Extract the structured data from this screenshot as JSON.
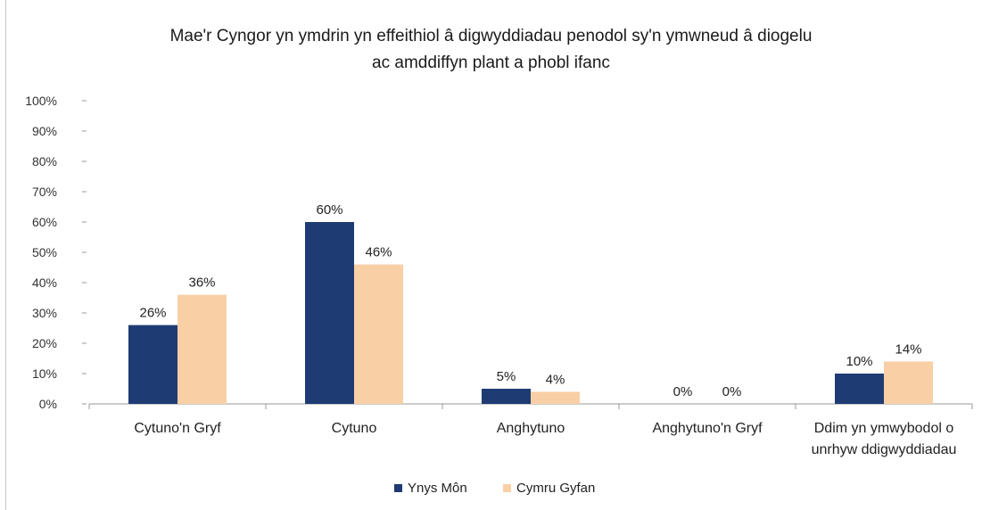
{
  "chart_data": {
    "type": "bar",
    "title_lines": [
      "Mae'r Cyngor yn ymdrin yn effeithiol â digwyddiadau penodol sy'n ymwneud â diogelu",
      "ac amddiffyn plant a phobl ifanc"
    ],
    "categories": [
      [
        "Cytuno'n Gryf"
      ],
      [
        "Cytuno"
      ],
      [
        "Anghytuno"
      ],
      [
        "Anghytuno'n Gryf"
      ],
      [
        "Ddim yn ymwybodol o",
        "unrhyw ddigwyddiadau"
      ]
    ],
    "series": [
      {
        "name": "Ynys Môn",
        "color": "#1f3b73",
        "values": [
          26,
          60,
          5,
          0,
          10
        ],
        "labels": [
          "26%",
          "60%",
          "5%",
          "0%",
          "10%"
        ]
      },
      {
        "name": "Cymru Gyfan",
        "color": "#f9cfa6",
        "values": [
          36,
          46,
          4,
          0,
          14
        ],
        "labels": [
          "36%",
          "46%",
          "4%",
          "0%",
          "14%"
        ]
      }
    ],
    "ylim": [
      0,
      100
    ],
    "yticks": [
      "0%",
      "10%",
      "20%",
      "30%",
      "40%",
      "50%",
      "60%",
      "70%",
      "80%",
      "90%",
      "100%"
    ],
    "grid": false,
    "legend": "bottom"
  }
}
